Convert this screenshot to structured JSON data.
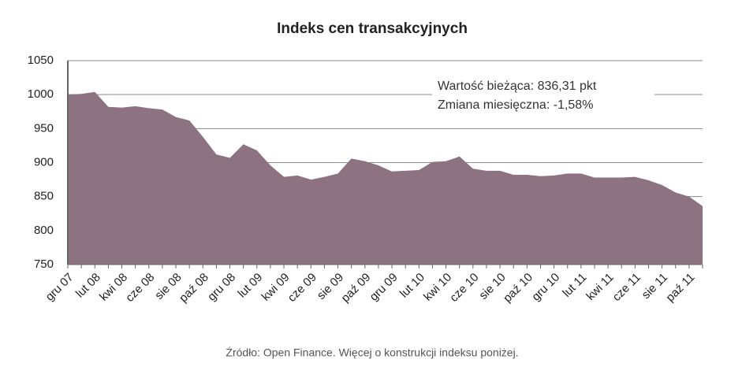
{
  "chart_data": {
    "type": "area",
    "title": "Indeks cen transakcyjnych",
    "annotations": [
      "Wartość bieżąca: 836,31 pkt",
      "Zmiana miesięczna: -1,58%"
    ],
    "source": "Źródło: Open Finance. Więcej o konstrukcji indeksu poniżej.",
    "categories": [
      "gru 07",
      null,
      "lut 08",
      null,
      "kwi 08",
      null,
      "cze 08",
      null,
      "sie 08",
      null,
      "paź 08",
      null,
      "gru 08",
      null,
      "lut 09",
      null,
      "kwi 09",
      null,
      "cze 09",
      null,
      "sie 09",
      null,
      "paź 09",
      null,
      "gru 09",
      null,
      "lut 10",
      null,
      "kwi 10",
      null,
      "cze 10",
      null,
      "sie 10",
      null,
      "paź 10",
      null,
      "gru 10",
      null,
      "lut 11",
      null,
      "kwi 11",
      null,
      "cze 11",
      null,
      "sie 11",
      null,
      "paź 11",
      null
    ],
    "values": [
      1000,
      1001,
      1004,
      982,
      981,
      983,
      980,
      978,
      967,
      962,
      938,
      912,
      907,
      927,
      918,
      896,
      879,
      881,
      875,
      879,
      884,
      906,
      902,
      896,
      887,
      888,
      889,
      901,
      902,
      909,
      891,
      888,
      888,
      882,
      882,
      880,
      881,
      884,
      884,
      878,
      878,
      878,
      879,
      874,
      867,
      856,
      850,
      836
    ],
    "color": "#8d7382",
    "ylim": [
      750,
      1050
    ],
    "yticks": [
      750,
      800,
      850,
      900,
      950,
      1000,
      1050
    ],
    "grid": true
  }
}
